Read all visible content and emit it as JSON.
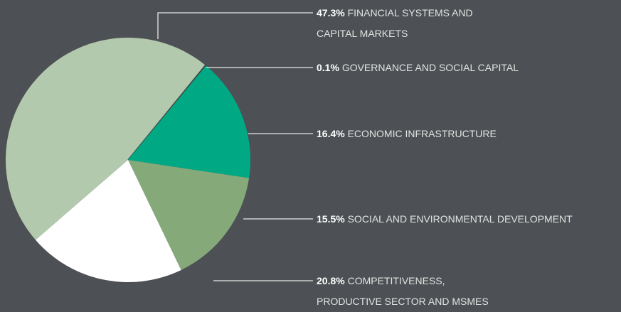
{
  "chart_data": {
    "type": "pie",
    "categories": [
      "FINANCIAL SYSTEMS AND CAPITAL MARKETS",
      "GOVERNANCE AND SOCIAL CAPITAL",
      "ECONOMIC INFRASTRUCTURE",
      "SOCIAL AND ENVIRONMENTAL DEVELOPMENT",
      "COMPETITIVENESS, PRODUCTIVE SECTOR AND MSMES"
    ],
    "values": [
      47.3,
      0.1,
      16.4,
      15.5,
      20.8
    ],
    "value_labels": [
      "47.3%",
      "0.1%",
      "16.4%",
      "15.5%",
      "20.8%"
    ],
    "colors": [
      "#b3c9ad",
      "#3b4744",
      "#00a884",
      "#86a97a",
      "#ffffff"
    ]
  }
}
